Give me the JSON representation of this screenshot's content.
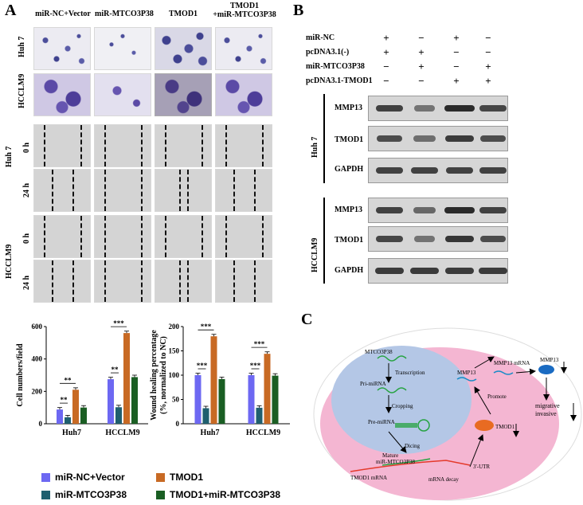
{
  "panelA": {
    "letter": "A",
    "headers": [
      "miR-NC+Vector",
      "miR-MTCO3P38",
      "TMOD1",
      "TMOD1\n+miR-MTCO3P38"
    ],
    "header_4_line1": "TMOD1",
    "header_4_line2": "+miR-MTCO3P38",
    "transwell_rows": [
      "Huh 7",
      "HCCLM9"
    ],
    "wound_groups": [
      "Huh 7",
      "HCCLM9"
    ],
    "time_labels": [
      "0 h",
      "24 h",
      "0 h",
      "24 h"
    ]
  },
  "panelB": {
    "letter": "B",
    "conditions": [
      {
        "label": "miR-NC",
        "signs": [
          "+",
          "−",
          "+",
          "−"
        ]
      },
      {
        "label": "pcDNA3.1(-)",
        "signs": [
          "+",
          "+",
          "−",
          "−"
        ]
      },
      {
        "label": "miR-MTCO3P38",
        "signs": [
          "−",
          "+",
          "−",
          "+"
        ]
      },
      {
        "label": "pcDNA3.1-TMOD1",
        "signs": [
          "−",
          "−",
          "+",
          "+"
        ]
      }
    ],
    "cell_lines": [
      "Huh 7",
      "HCCLM9"
    ],
    "proteins": [
      "MMP13",
      "TMOD1",
      "GAPDH"
    ],
    "band_intensity": {
      "Huh 7": {
        "MMP13": [
          0.8,
          0.35,
          1.0,
          0.75
        ],
        "TMOD1": [
          0.7,
          0.4,
          0.85,
          0.7
        ],
        "GAPDH": [
          0.8,
          0.8,
          0.8,
          0.8
        ]
      },
      "HCCLM9": {
        "MMP13": [
          0.8,
          0.45,
          1.0,
          0.8
        ],
        "TMOD1": [
          0.75,
          0.35,
          0.9,
          0.7
        ],
        "GAPDH": [
          0.85,
          0.85,
          0.85,
          0.85
        ]
      }
    }
  },
  "panelC": {
    "letter": "C",
    "labels": {
      "mtco3p38": "MTCO3P38",
      "transcription": "Transcription",
      "pri_mirna": "Pri-miRNA",
      "cropping": "Cropping",
      "pre_mirna": "Pre-miRNA",
      "dicing": "Dicing",
      "mature_line1": "Mature",
      "mature_line2": "miR-MTCO3P38",
      "tmod1_mrna": "TMOD1  mRNA",
      "mrna_decay": "mRNA decay",
      "utr": "3'-UTR",
      "tmod1_protein": "TMOD1",
      "promote": "Promote",
      "mmp13": "MMP13",
      "mmp13_mrna": "MMP13 mRNA",
      "mmp13_protein": "MMP13",
      "migrative": "migrative",
      "invasive": "invasive"
    }
  },
  "chart_data": [
    {
      "type": "bar",
      "categories": [
        "Huh7",
        "HCCLM9"
      ],
      "ylabel": "Cell numbers/field",
      "ylim": [
        0,
        600
      ],
      "yticks": [
        0,
        200,
        400,
        600
      ],
      "series": [
        {
          "name": "miR-NC+Vector",
          "values": [
            88,
            275
          ],
          "color": "#6d68f2"
        },
        {
          "name": "miR-MTCO3P38",
          "values": [
            40,
            102
          ],
          "color": "#1f5f6f"
        },
        {
          "name": "TMOD1",
          "values": [
            210,
            560
          ],
          "color": "#c86a24"
        },
        {
          "name": "TMOD1+miR-MTCO3P38",
          "values": [
            100,
            288
          ],
          "color": "#1a5e23"
        }
      ],
      "significance": [
        {
          "category": "Huh7",
          "between": [
            0,
            1
          ],
          "label": "**"
        },
        {
          "category": "Huh7",
          "between": [
            0,
            2
          ],
          "label": "**"
        },
        {
          "category": "HCCLM9",
          "between": [
            0,
            1
          ],
          "label": "**"
        },
        {
          "category": "HCCLM9",
          "between": [
            0,
            2
          ],
          "label": "***"
        }
      ]
    },
    {
      "type": "bar",
      "categories": [
        "Huh7",
        "HCCLM9"
      ],
      "ylabel": "Wound healing percentage\n(%, normalized to NC)",
      "ylabel_line1": "Wound healing percentage",
      "ylabel_line2": "(%, normalized to NC)",
      "ylim": [
        0,
        200
      ],
      "yticks": [
        0,
        50,
        100,
        150,
        200
      ],
      "series": [
        {
          "name": "miR-NC+Vector",
          "values": [
            100,
            100
          ],
          "color": "#6d68f2"
        },
        {
          "name": "miR-MTCO3P38",
          "values": [
            32,
            33
          ],
          "color": "#1f5f6f"
        },
        {
          "name": "TMOD1",
          "values": [
            180,
            144
          ],
          "color": "#c86a24"
        },
        {
          "name": "TMOD1+miR-MTCO3P38",
          "values": [
            92,
            99
          ],
          "color": "#1a5e23"
        }
      ],
      "significance": [
        {
          "category": "Huh7",
          "between": [
            0,
            1
          ],
          "label": "***"
        },
        {
          "category": "Huh7",
          "between": [
            0,
            2
          ],
          "label": "***"
        },
        {
          "category": "HCCLM9",
          "between": [
            0,
            1
          ],
          "label": "***"
        },
        {
          "category": "HCCLM9",
          "between": [
            0,
            2
          ],
          "label": "***"
        }
      ]
    }
  ],
  "legend": [
    "miR-NC+Vector",
    "TMOD1",
    "miR-MTCO3P38",
    "TMOD1+miR-MTCO3P38"
  ]
}
